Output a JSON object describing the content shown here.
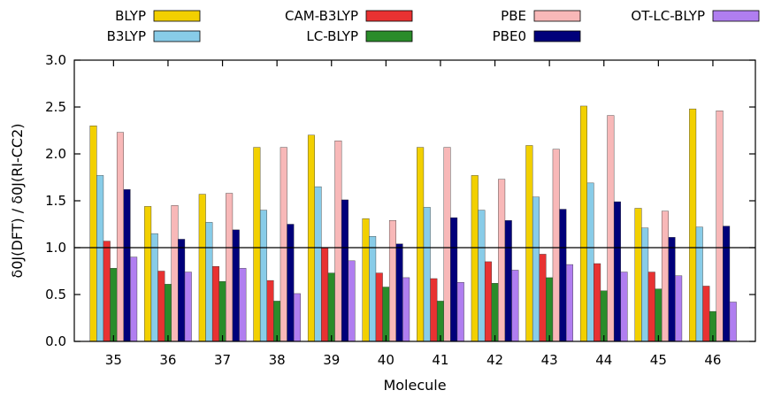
{
  "chart_data": {
    "type": "bar",
    "xlabel": "Molecule",
    "ylabel": "δ0J(DFT) / δ0J(RI-CC2)",
    "ylim": [
      0.0,
      3.0
    ],
    "yticks": [
      0.0,
      0.5,
      1.0,
      1.5,
      2.0,
      2.5,
      3.0
    ],
    "ytick_labels": [
      "0.0",
      "0.5",
      "1.0",
      "1.5",
      "2.0",
      "2.5",
      "3.0"
    ],
    "reference_line": 1.0,
    "grid": false,
    "legend_position": "top",
    "categories": [
      "35",
      "36",
      "37",
      "38",
      "39",
      "40",
      "41",
      "42",
      "43",
      "44",
      "45",
      "46"
    ],
    "series": [
      {
        "name": "BLYP",
        "color": "#f2d000",
        "values": [
          2.3,
          1.44,
          1.57,
          2.07,
          2.2,
          1.31,
          2.07,
          1.77,
          2.09,
          2.51,
          1.42,
          2.48
        ]
      },
      {
        "name": "B3LYP",
        "color": "#88cce8",
        "values": [
          1.77,
          1.15,
          1.27,
          1.4,
          1.65,
          1.12,
          1.43,
          1.4,
          1.54,
          1.69,
          1.21,
          1.22
        ]
      },
      {
        "name": "CAM-B3LYP",
        "color": "#e83232",
        "values": [
          1.07,
          0.75,
          0.8,
          0.65,
          1.0,
          0.73,
          0.67,
          0.85,
          0.93,
          0.83,
          0.74,
          0.59
        ]
      },
      {
        "name": "LC-BLYP",
        "color": "#2a8c2a",
        "values": [
          0.78,
          0.61,
          0.64,
          0.43,
          0.73,
          0.58,
          0.43,
          0.62,
          0.68,
          0.54,
          0.56,
          0.32
        ]
      },
      {
        "name": "PBE",
        "color": "#f8b8b8",
        "values": [
          2.23,
          1.45,
          1.58,
          2.07,
          2.14,
          1.29,
          2.07,
          1.73,
          2.05,
          2.41,
          1.39,
          2.46
        ]
      },
      {
        "name": "PBE0",
        "color": "#00007a",
        "values": [
          1.62,
          1.09,
          1.19,
          1.25,
          1.51,
          1.04,
          1.32,
          1.29,
          1.41,
          1.49,
          1.11,
          1.23
        ]
      },
      {
        "name": "OT-LC-BLYP",
        "color": "#b07ef0",
        "values": [
          0.9,
          0.74,
          0.78,
          0.51,
          0.86,
          0.68,
          0.63,
          0.76,
          0.82,
          0.74,
          0.7,
          0.42
        ]
      }
    ]
  }
}
